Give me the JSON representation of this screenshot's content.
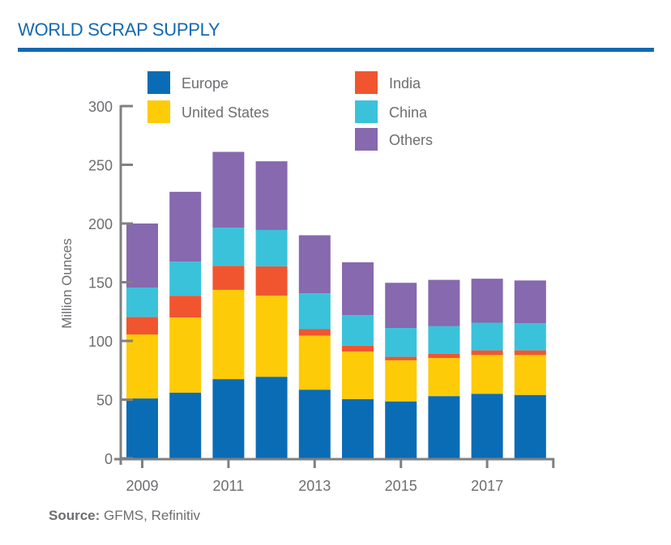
{
  "header": {
    "title": "WORLD SCRAP SUPPLY"
  },
  "footer": {
    "source_label": "Source:",
    "source_text": " GFMS, Refinitiv"
  },
  "colors": {
    "accent": "#1269b3",
    "axis": "#808080",
    "text": "#6d6e71"
  },
  "chart_data": {
    "type": "bar",
    "stacked": true,
    "title": "WORLD SCRAP SUPPLY",
    "xlabel": "",
    "ylabel": "Million Ounces",
    "ylim": [
      0,
      300
    ],
    "yticks": [
      0,
      50,
      100,
      150,
      200,
      250,
      300
    ],
    "categories": [
      "2009",
      "2010",
      "2011",
      "2012",
      "2013",
      "2014",
      "2015",
      "2016",
      "2017",
      "2018"
    ],
    "xtick_labels": [
      "2009",
      "2011",
      "2013",
      "2015",
      "2017"
    ],
    "grid": false,
    "legend_position": "top",
    "series": [
      {
        "name": "Europe",
        "color": "#0b6cb6",
        "values": [
          51,
          56,
          67.5,
          69.5,
          58.5,
          50.5,
          48.5,
          53,
          55,
          54
        ]
      },
      {
        "name": "United States",
        "color": "#fdcb08",
        "values": [
          54.5,
          64,
          76,
          69,
          46,
          40.5,
          35,
          32.5,
          33,
          34
        ]
      },
      {
        "name": "India",
        "color": "#f1552f",
        "values": [
          15,
          18.5,
          20.5,
          25,
          5.5,
          5,
          3,
          3.5,
          4,
          4
        ]
      },
      {
        "name": "China",
        "color": "#3ac2da",
        "values": [
          25,
          29,
          32.5,
          31,
          30.5,
          26,
          24.5,
          23.5,
          23.5,
          23
        ]
      },
      {
        "name": "Others",
        "color": "#8669ae",
        "values": [
          54.5,
          59.5,
          64.5,
          58.5,
          49.5,
          45,
          38.5,
          39.5,
          37.5,
          36.5
        ]
      }
    ],
    "legend": [
      {
        "name": "Europe",
        "color": "#0b6cb6"
      },
      {
        "name": "United States",
        "color": "#fdcb08"
      },
      {
        "name": "India",
        "color": "#f1552f"
      },
      {
        "name": "China",
        "color": "#3ac2da"
      },
      {
        "name": "Others",
        "color": "#8669ae"
      }
    ],
    "source": "Source: GFMS, Refinitiv"
  }
}
